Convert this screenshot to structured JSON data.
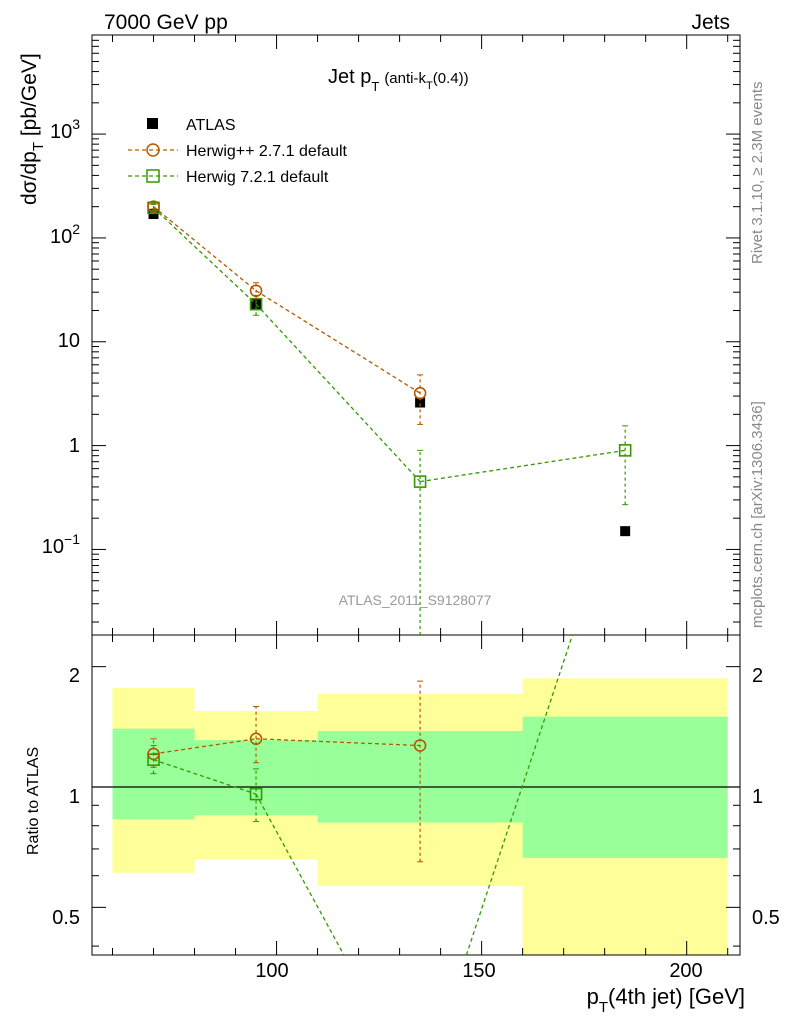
{
  "header": {
    "left": "7000 GeV pp",
    "right": "Jets"
  },
  "title": {
    "main": "Jet p",
    "main_sub": "T",
    "algo_a": "(anti-k",
    "algo_sub": "T",
    "algo_b": "(0.4))"
  },
  "side": {
    "rivet": "Rivet 3.1.10, ≥ 2.3M events",
    "mcplots": "mcplots.cern.ch [arXiv:1306.3436]"
  },
  "watermark": "ATLAS_2011_S9128077",
  "axes": {
    "ylabel_main_a": "dσ/dp",
    "ylabel_main_sub": "T",
    "ylabel_main_b": " [pb/GeV]",
    "ylabel_ratio": "Ratio to ATLAS",
    "xlabel_a": "p",
    "xlabel_sub": "T",
    "xlabel_b": "(4th jet) [GeV]",
    "main_ticks": [
      "10⁻¹",
      "1",
      "10",
      "10²",
      "10³"
    ],
    "ratio_ticks": [
      "0.5",
      "1",
      "2"
    ],
    "x_ticks": [
      "100",
      "150",
      "200"
    ]
  },
  "legend": {
    "atlas": "ATLAS",
    "herwigpp": "Herwig++ 2.7.1 default",
    "herwig7": "Herwig 7.2.1 default"
  },
  "colors": {
    "atlas": "#000000",
    "herwigpp": "#b35900",
    "herwig7": "#339900",
    "band_outer": "#ffff99",
    "band_inner": "#99ff99"
  },
  "chart_data": {
    "type": "scatter",
    "x_range": [
      55,
      213
    ],
    "y_range_main": [
      0.015,
      9000
    ],
    "y_scale_main": "log",
    "y_range_ratio": [
      0.38,
      2.4
    ],
    "y_scale_ratio": "log",
    "legend_position": "top-left",
    "bins": [
      [
        60,
        80
      ],
      [
        80,
        110
      ],
      [
        110,
        160
      ],
      [
        160,
        210
      ]
    ],
    "x": [
      70,
      95,
      135,
      185
    ],
    "series": [
      {
        "name": "ATLAS",
        "values": [
          170,
          23,
          2.6,
          0.15
        ],
        "band_inner": [
          [
            0.83,
            1.4
          ],
          [
            0.85,
            1.31
          ],
          [
            0.815,
            1.38
          ],
          [
            0.665,
            1.5
          ]
        ],
        "band_outer": [
          [
            0.61,
            1.77
          ],
          [
            0.66,
            1.55
          ],
          [
            0.565,
            1.71
          ],
          [
            0.33,
            1.87
          ]
        ]
      },
      {
        "name": "Herwig++ 2.7.1 default",
        "values": [
          200,
          31,
          3.2,
          null
        ],
        "errors": [
          [
            190,
            215
          ],
          [
            26,
            37
          ],
          [
            1.6,
            4.8
          ],
          null
        ],
        "ratio": [
          1.21,
          1.32,
          1.27,
          null
        ],
        "ratio_errors": [
          [
            1.12,
            1.32
          ],
          [
            1.15,
            1.59
          ],
          [
            0.65,
            1.84
          ],
          null
        ]
      },
      {
        "name": "Herwig 7.2.1 default",
        "values": [
          195,
          23,
          0.45,
          0.9
        ],
        "errors": [
          [
            183,
            210
          ],
          [
            18,
            28
          ],
          [
            0.01,
            0.9
          ],
          [
            0.27,
            1.55
          ]
        ],
        "ratio": [
          1.17,
          0.96,
          0.17,
          6.0
        ],
        "ratio_errors": [
          [
            1.08,
            1.27
          ],
          [
            0.82,
            1.11
          ],
          [
            0.01,
            0.35
          ],
          [
            1.8,
            10.3
          ]
        ]
      }
    ]
  }
}
